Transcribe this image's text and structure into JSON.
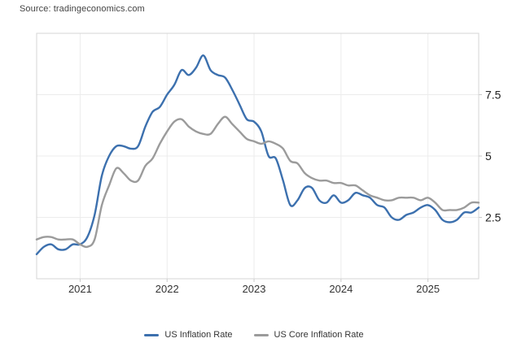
{
  "source": "Source: tradingeconomics.com",
  "legend": {
    "items": [
      {
        "label": "US Inflation Rate",
        "color": "#3c70ae"
      },
      {
        "label": "US Core Inflation Rate",
        "color": "#9b9b9b"
      }
    ]
  },
  "colors": {
    "grid": "#ececec",
    "border": "#d5d5d5",
    "tick": "#c9c9c9",
    "axis_text": "#333333"
  },
  "chart_data": {
    "type": "line",
    "title": "",
    "xlabel": "",
    "ylabel": "",
    "ylim": [
      0,
      10
    ],
    "yticks": [
      2.5,
      5,
      7.5
    ],
    "ytick_labels": [
      "2.5",
      "5",
      "7.5"
    ],
    "x_tick_labels": [
      "2021",
      "2022",
      "2023",
      "2024",
      "2025"
    ],
    "grid": true,
    "legend_position": "bottom",
    "x": [
      "2020-07",
      "2020-08",
      "2020-09",
      "2020-10",
      "2020-11",
      "2020-12",
      "2021-01",
      "2021-02",
      "2021-03",
      "2021-04",
      "2021-05",
      "2021-06",
      "2021-07",
      "2021-08",
      "2021-09",
      "2021-10",
      "2021-11",
      "2021-12",
      "2022-01",
      "2022-02",
      "2022-03",
      "2022-04",
      "2022-05",
      "2022-06",
      "2022-07",
      "2022-08",
      "2022-09",
      "2022-10",
      "2022-11",
      "2022-12",
      "2023-01",
      "2023-02",
      "2023-03",
      "2023-04",
      "2023-05",
      "2023-06",
      "2023-07",
      "2023-08",
      "2023-09",
      "2023-10",
      "2023-11",
      "2023-12",
      "2024-01",
      "2024-02",
      "2024-03",
      "2024-04",
      "2024-05",
      "2024-06",
      "2024-07",
      "2024-08",
      "2024-09",
      "2024-10",
      "2024-11",
      "2024-12",
      "2025-01",
      "2025-02",
      "2025-03",
      "2025-04",
      "2025-05",
      "2025-06",
      "2025-07",
      "2025-08"
    ],
    "series": [
      {
        "name": "US Inflation Rate",
        "color": "#3c70ae",
        "values": [
          1.0,
          1.3,
          1.4,
          1.2,
          1.2,
          1.4,
          1.4,
          1.7,
          2.6,
          4.2,
          5.0,
          5.4,
          5.4,
          5.3,
          5.4,
          6.2,
          6.8,
          7.0,
          7.5,
          7.9,
          8.5,
          8.3,
          8.6,
          9.1,
          8.5,
          8.3,
          8.2,
          7.7,
          7.1,
          6.5,
          6.4,
          6.0,
          5.0,
          4.9,
          4.0,
          3.0,
          3.2,
          3.7,
          3.7,
          3.2,
          3.1,
          3.4,
          3.1,
          3.2,
          3.5,
          3.4,
          3.3,
          3.0,
          2.9,
          2.5,
          2.4,
          2.6,
          2.7,
          2.9,
          3.0,
          2.8,
          2.4,
          2.3,
          2.4,
          2.7,
          2.7,
          2.9
        ]
      },
      {
        "name": "US Core Inflation Rate",
        "color": "#9b9b9b",
        "values": [
          1.6,
          1.7,
          1.7,
          1.6,
          1.6,
          1.6,
          1.4,
          1.3,
          1.6,
          3.0,
          3.8,
          4.5,
          4.3,
          4.0,
          4.0,
          4.6,
          4.9,
          5.5,
          6.0,
          6.4,
          6.5,
          6.2,
          6.0,
          5.9,
          5.9,
          6.3,
          6.6,
          6.3,
          6.0,
          5.7,
          5.6,
          5.5,
          5.6,
          5.5,
          5.3,
          4.8,
          4.7,
          4.3,
          4.1,
          4.0,
          4.0,
          3.9,
          3.9,
          3.8,
          3.8,
          3.6,
          3.4,
          3.3,
          3.2,
          3.2,
          3.3,
          3.3,
          3.3,
          3.2,
          3.3,
          3.1,
          2.8,
          2.8,
          2.8,
          2.9,
          3.1,
          3.1
        ]
      }
    ]
  }
}
